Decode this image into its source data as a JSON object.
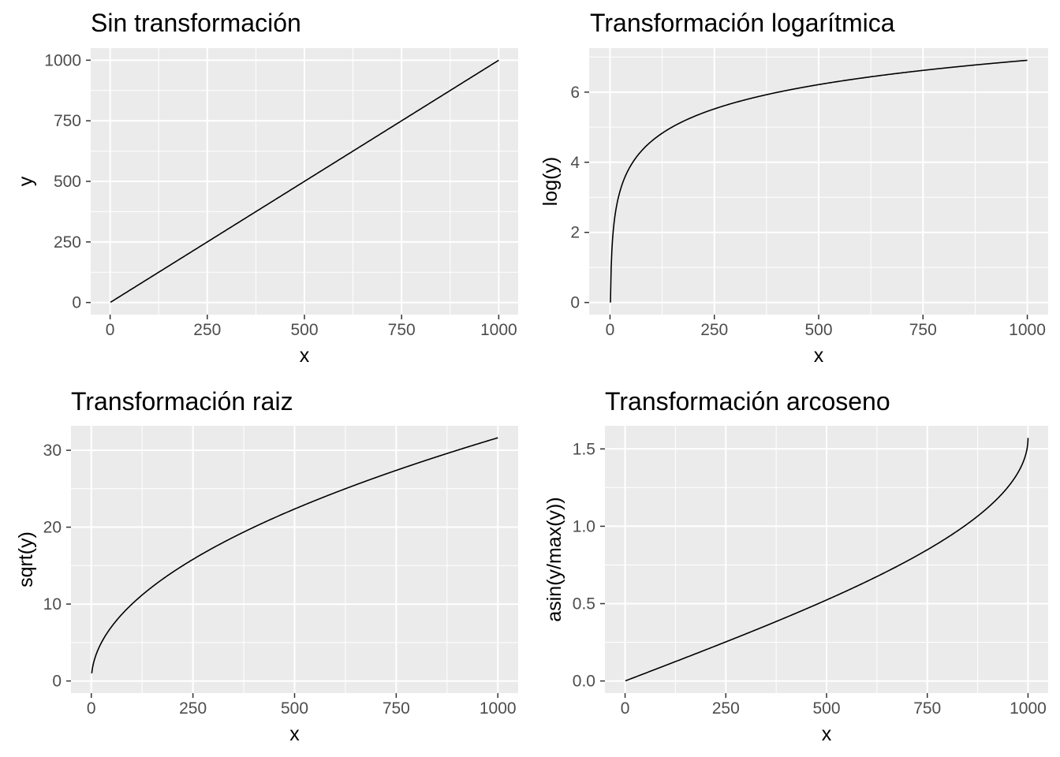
{
  "colors": {
    "panel": "#ebebeb",
    "grid": "#ffffff",
    "line": "#000000",
    "tick_text": "#4d4d4d"
  },
  "chart_data": [
    {
      "type": "line",
      "title": "Sin transformación",
      "xlabel": "x",
      "ylabel": "y",
      "xlim": [
        0,
        1000
      ],
      "ylim": [
        0,
        1000
      ],
      "x_ticks": [
        0,
        250,
        500,
        750,
        1000
      ],
      "x_tick_labels": [
        "0",
        "250",
        "500",
        "750",
        "1000"
      ],
      "y_ticks": [
        0,
        250,
        500,
        750,
        1000
      ],
      "y_tick_labels": [
        "0",
        "250",
        "500",
        "750",
        "1000"
      ],
      "function": "y = x",
      "x": [
        1,
        100,
        200,
        300,
        400,
        500,
        600,
        700,
        800,
        900,
        1000
      ],
      "y": [
        1,
        100,
        200,
        300,
        400,
        500,
        600,
        700,
        800,
        900,
        1000
      ],
      "grid": true
    },
    {
      "type": "line",
      "title": "Transformación logarítmica",
      "xlabel": "x",
      "ylabel": "log(y)",
      "xlim": [
        0,
        1000
      ],
      "ylim": [
        0,
        6.91
      ],
      "x_ticks": [
        0,
        250,
        500,
        750,
        1000
      ],
      "x_tick_labels": [
        "0",
        "250",
        "500",
        "750",
        "1000"
      ],
      "y_ticks": [
        0,
        2,
        4,
        6
      ],
      "y_tick_labels": [
        "0",
        "2",
        "4",
        "6"
      ],
      "function": "y = log(x)",
      "x": [
        1,
        10,
        50,
        100,
        250,
        500,
        750,
        1000
      ],
      "y": [
        0,
        2.3,
        3.91,
        4.61,
        5.52,
        6.21,
        6.62,
        6.91
      ],
      "grid": true
    },
    {
      "type": "line",
      "title": "Transformación raiz",
      "xlabel": "x",
      "ylabel": "sqrt(y)",
      "xlim": [
        0,
        1000
      ],
      "ylim": [
        0,
        31.6
      ],
      "x_ticks": [
        0,
        250,
        500,
        750,
        1000
      ],
      "x_tick_labels": [
        "0",
        "250",
        "500",
        "750",
        "1000"
      ],
      "y_ticks": [
        0,
        10,
        20,
        30
      ],
      "y_tick_labels": [
        "0",
        "10",
        "20",
        "30"
      ],
      "function": "y = sqrt(x)",
      "x": [
        1,
        25,
        100,
        250,
        500,
        750,
        1000
      ],
      "y": [
        1,
        5,
        10,
        15.8,
        22.4,
        27.4,
        31.6
      ],
      "grid": true
    },
    {
      "type": "line",
      "title": "Transformación arcoseno",
      "xlabel": "x",
      "ylabel": "asin(y/max(y))",
      "xlim": [
        0,
        1000
      ],
      "ylim": [
        0,
        1.5708
      ],
      "x_ticks": [
        0,
        250,
        500,
        750,
        1000
      ],
      "x_tick_labels": [
        "0",
        "250",
        "500",
        "750",
        "1000"
      ],
      "y_ticks": [
        0,
        0.5,
        1.0,
        1.5
      ],
      "y_tick_labels": [
        "0.0",
        "0.5",
        "1.0",
        "1.5"
      ],
      "function": "y = asin(x/1000)",
      "x": [
        1,
        250,
        500,
        750,
        900,
        990,
        1000
      ],
      "y": [
        0.001,
        0.253,
        0.524,
        0.848,
        1.12,
        1.43,
        1.571
      ],
      "grid": true
    }
  ]
}
